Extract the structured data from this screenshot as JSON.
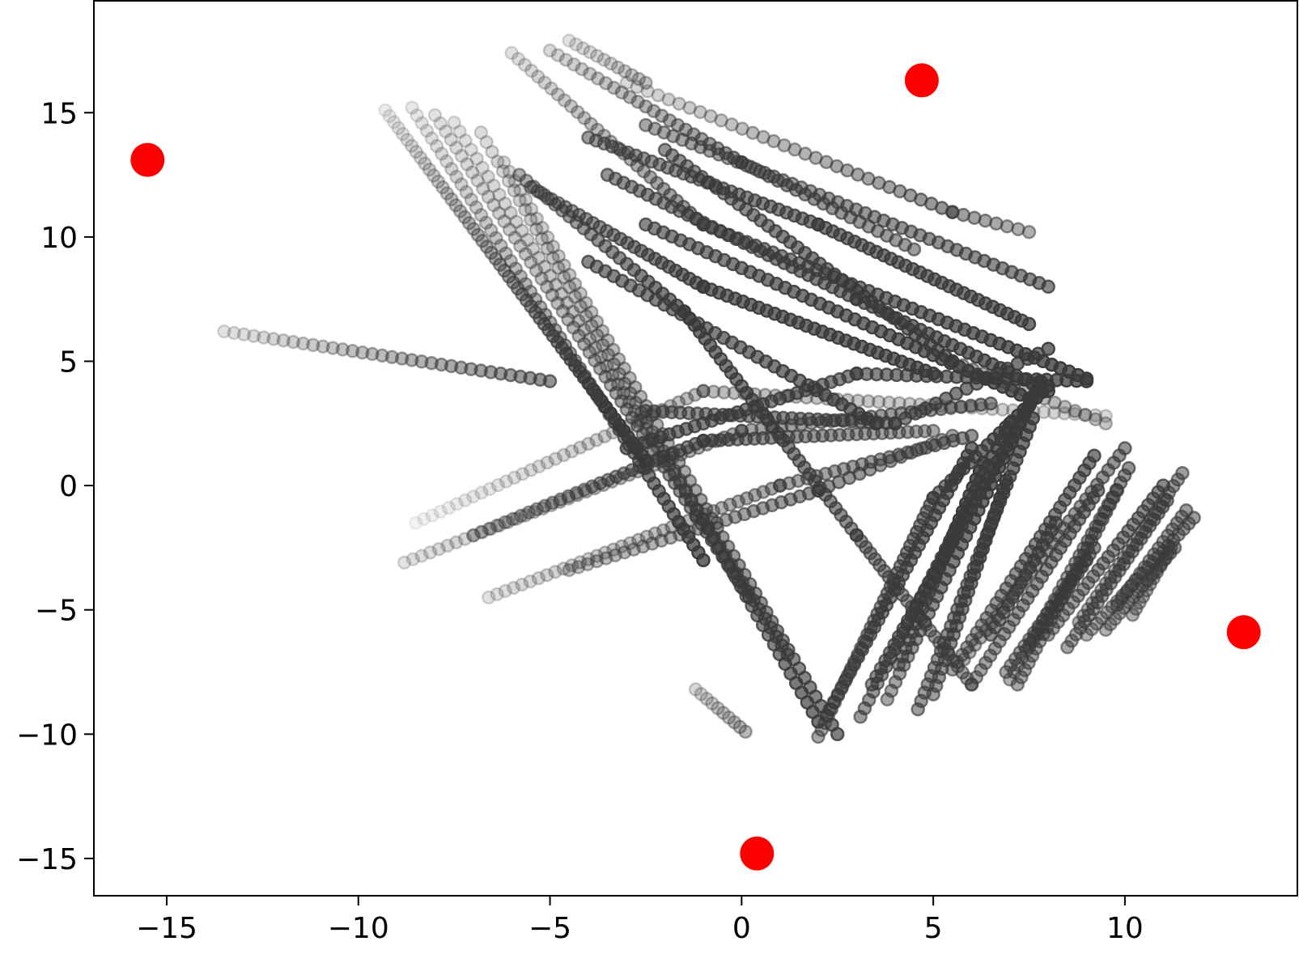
{
  "chart_data": {
    "type": "scatter",
    "title": "",
    "xlabel": "",
    "ylabel": "",
    "xlim": [
      -16.9,
      14.5
    ],
    "ylim": [
      -16.5,
      19.5
    ],
    "xticks": [
      -15,
      -10,
      -5,
      0,
      5,
      10
    ],
    "xtick_labels": [
      "−15",
      "−10",
      "−5",
      "0",
      "5",
      "10"
    ],
    "yticks": [
      -15,
      -10,
      -5,
      0,
      5,
      10,
      15
    ],
    "ytick_labels": [
      "−15",
      "−10",
      "−5",
      "0",
      "5",
      "10",
      "15"
    ],
    "grid": false,
    "legend": null,
    "colors": {
      "trajectory": "#3a3a3a",
      "marker": "#ff0000",
      "axis": "#000000"
    },
    "marker_points": [
      {
        "x": -15.5,
        "y": 13.1
      },
      {
        "x": 4.7,
        "y": 16.3
      },
      {
        "x": 13.1,
        "y": -5.9
      },
      {
        "x": 0.4,
        "y": -14.8
      }
    ],
    "trajectories": [
      {
        "from": [
          -13.5,
          6.2
        ],
        "to": [
          -5.0,
          4.2
        ],
        "n": 34,
        "a0": 0.15,
        "a1": 0.55
      },
      {
        "from": [
          -9.3,
          15.1
        ],
        "to": [
          -2.5,
          1.0
        ],
        "n": 60,
        "a0": 0.1,
        "a1": 0.85
      },
      {
        "from": [
          -8.6,
          15.2
        ],
        "to": [
          -1.0,
          -3.0
        ],
        "n": 60,
        "a0": 0.12,
        "a1": 0.75
      },
      {
        "from": [
          -8.0,
          14.9
        ],
        "to": [
          0.2,
          -4.5
        ],
        "n": 60,
        "a0": 0.15,
        "a1": 0.65
      },
      {
        "from": [
          -7.5,
          14.6
        ],
        "to": [
          1.2,
          -6.8
        ],
        "n": 60,
        "a0": 0.15,
        "a1": 0.6
      },
      {
        "from": [
          -6.8,
          14.2
        ],
        "to": [
          2.0,
          -9.5
        ],
        "n": 62,
        "a0": 0.18,
        "a1": 0.7
      },
      {
        "from": [
          -6.2,
          13.0
        ],
        "to": [
          2.5,
          -10.0
        ],
        "n": 62,
        "a0": 0.2,
        "a1": 0.65
      },
      {
        "from": [
          -5.8,
          12.5
        ],
        "to": [
          -1.5,
          7.0
        ],
        "n": 24,
        "a0": 0.4,
        "a1": 0.7
      },
      {
        "from": [
          -1.5,
          7.0
        ],
        "to": [
          3.0,
          -2.0
        ],
        "n": 34,
        "a0": 0.7,
        "a1": 0.55
      },
      {
        "from": [
          3.0,
          -2.0
        ],
        "to": [
          6.0,
          -8.0
        ],
        "n": 26,
        "a0": 0.55,
        "a1": 0.45
      },
      {
        "from": [
          -5.5,
          12.0
        ],
        "to": [
          -1.0,
          8.0
        ],
        "n": 26,
        "a0": 0.45,
        "a1": 0.7
      },
      {
        "from": [
          -1.0,
          8.0
        ],
        "to": [
          5.0,
          4.5
        ],
        "n": 30,
        "a0": 0.7,
        "a1": 0.75
      },
      {
        "from": [
          -6.0,
          17.4
        ],
        "to": [
          -1.0,
          10.5
        ],
        "n": 30,
        "a0": 0.15,
        "a1": 0.55
      },
      {
        "from": [
          -1.0,
          10.5
        ],
        "to": [
          9.0,
          4.3
        ],
        "n": 45,
        "a0": 0.55,
        "a1": 0.8
      },
      {
        "from": [
          -4.0,
          14.0
        ],
        "to": [
          2.0,
          10.5
        ],
        "n": 30,
        "a0": 0.5,
        "a1": 0.65
      },
      {
        "from": [
          2.0,
          10.5
        ],
        "to": [
          7.5,
          6.5
        ],
        "n": 30,
        "a0": 0.65,
        "a1": 0.7
      },
      {
        "from": [
          -3.5,
          12.5
        ],
        "to": [
          3.0,
          7.5
        ],
        "n": 32,
        "a0": 0.55,
        "a1": 0.65
      },
      {
        "from": [
          3.0,
          7.5
        ],
        "to": [
          8.0,
          3.8
        ],
        "n": 25,
        "a0": 0.65,
        "a1": 0.75
      },
      {
        "from": [
          -5.0,
          17.5
        ],
        "to": [
          0.0,
          13.0
        ],
        "n": 25,
        "a0": 0.2,
        "a1": 0.55
      },
      {
        "from": [
          0.0,
          13.0
        ],
        "to": [
          4.5,
          9.5
        ],
        "n": 20,
        "a0": 0.55,
        "a1": 0.5
      },
      {
        "from": [
          -3.0,
          16.2
        ],
        "to": [
          5.5,
          11.0
        ],
        "n": 32,
        "a0": 0.2,
        "a1": 0.55
      },
      {
        "from": [
          5.5,
          11.0
        ],
        "to": [
          7.5,
          10.2
        ],
        "n": 8,
        "a0": 0.5,
        "a1": 0.4
      },
      {
        "from": [
          -2.5,
          14.5
        ],
        "to": [
          8.0,
          8.0
        ],
        "n": 45,
        "a0": 0.45,
        "a1": 0.6
      },
      {
        "from": [
          -4.5,
          17.9
        ],
        "to": [
          -2.5,
          16.2
        ],
        "n": 12,
        "a0": 0.15,
        "a1": 0.3
      },
      {
        "from": [
          -2.0,
          13.5
        ],
        "to": [
          5.5,
          5.0
        ],
        "n": 40,
        "a0": 0.55,
        "a1": 0.7
      },
      {
        "from": [
          5.5,
          5.0
        ],
        "to": [
          9.5,
          2.5
        ],
        "n": 16,
        "a0": 0.45,
        "a1": 0.3
      },
      {
        "from": [
          -2.5,
          10.5
        ],
        "to": [
          7.5,
          3.5
        ],
        "n": 45,
        "a0": 0.6,
        "a1": 0.8
      },
      {
        "from": [
          -4.0,
          9.0
        ],
        "to": [
          3.5,
          2.5
        ],
        "n": 35,
        "a0": 0.6,
        "a1": 0.7
      },
      {
        "from": [
          -3.0,
          1.5
        ],
        "to": [
          3.0,
          4.5
        ],
        "n": 28,
        "a0": 0.65,
        "a1": 0.6
      },
      {
        "from": [
          3.0,
          4.5
        ],
        "to": [
          9.0,
          4.2
        ],
        "n": 24,
        "a0": 0.6,
        "a1": 0.75
      },
      {
        "from": [
          -2.5,
          3.0
        ],
        "to": [
          4.0,
          2.5
        ],
        "n": 30,
        "a0": 0.55,
        "a1": 0.6
      },
      {
        "from": [
          4.0,
          2.5
        ],
        "to": [
          8.0,
          5.5
        ],
        "n": 16,
        "a0": 0.6,
        "a1": 0.7
      },
      {
        "from": [
          -8.5,
          -1.5
        ],
        "to": [
          -1.0,
          3.8
        ],
        "n": 36,
        "a0": 0.06,
        "a1": 0.35
      },
      {
        "from": [
          -1.0,
          3.8
        ],
        "to": [
          9.5,
          2.8
        ],
        "n": 40,
        "a0": 0.35,
        "a1": 0.2
      },
      {
        "from": [
          -8.8,
          -3.1
        ],
        "to": [
          0.0,
          2.2
        ],
        "n": 40,
        "a0": 0.15,
        "a1": 0.45
      },
      {
        "from": [
          0.0,
          2.2
        ],
        "to": [
          6.5,
          3.3
        ],
        "n": 26,
        "a0": 0.45,
        "a1": 0.55
      },
      {
        "from": [
          -7.0,
          -2.0
        ],
        "to": [
          -1.0,
          1.8
        ],
        "n": 30,
        "a0": 0.3,
        "a1": 0.6
      },
      {
        "from": [
          -1.0,
          1.8
        ],
        "to": [
          5.0,
          2.2
        ],
        "n": 28,
        "a0": 0.6,
        "a1": 0.45
      },
      {
        "from": [
          -6.6,
          -4.5
        ],
        "to": [
          1.0,
          0.0
        ],
        "n": 36,
        "a0": 0.15,
        "a1": 0.45
      },
      {
        "from": [
          1.0,
          0.0
        ],
        "to": [
          6.0,
          2.0
        ],
        "n": 22,
        "a0": 0.45,
        "a1": 0.55
      },
      {
        "from": [
          -4.5,
          -3.4
        ],
        "to": [
          2.0,
          -0.2
        ],
        "n": 28,
        "a0": 0.3,
        "a1": 0.55
      },
      {
        "from": [
          2.0,
          -0.2
        ],
        "to": [
          5.5,
          2.0
        ],
        "n": 14,
        "a0": 0.55,
        "a1": 0.45
      },
      {
        "from": [
          -1.2,
          -8.2
        ],
        "to": [
          0.1,
          -9.9
        ],
        "n": 10,
        "a0": 0.2,
        "a1": 0.35
      },
      {
        "from": [
          2.0,
          -10.1
        ],
        "to": [
          5.0,
          -0.5
        ],
        "n": 36,
        "a0": 0.45,
        "a1": 0.6
      },
      {
        "from": [
          5.0,
          -0.5
        ],
        "to": [
          8.0,
          4.0
        ],
        "n": 20,
        "a0": 0.6,
        "a1": 0.8
      },
      {
        "from": [
          2.3,
          -9.0
        ],
        "to": [
          6.0,
          1.5
        ],
        "n": 36,
        "a0": 0.55,
        "a1": 0.7
      },
      {
        "from": [
          3.1,
          -9.3
        ],
        "to": [
          7.0,
          2.5
        ],
        "n": 36,
        "a0": 0.5,
        "a1": 0.75
      },
      {
        "from": [
          3.4,
          -8.0
        ],
        "to": [
          7.5,
          3.2
        ],
        "n": 36,
        "a0": 0.55,
        "a1": 0.85
      },
      {
        "from": [
          3.8,
          -8.6
        ],
        "to": [
          7.8,
          4.2
        ],
        "n": 38,
        "a0": 0.45,
        "a1": 0.9
      },
      {
        "from": [
          4.1,
          -7.2
        ],
        "to": [
          6.3,
          0.9
        ],
        "n": 26,
        "a0": 0.5,
        "a1": 0.85
      },
      {
        "from": [
          4.6,
          -9.0
        ],
        "to": [
          7.6,
          2.7
        ],
        "n": 36,
        "a0": 0.5,
        "a1": 0.7
      },
      {
        "from": [
          5.0,
          -8.4
        ],
        "to": [
          6.9,
          0.2
        ],
        "n": 26,
        "a0": 0.5,
        "a1": 0.75
      },
      {
        "from": [
          5.5,
          -7.4
        ],
        "to": [
          9.2,
          1.2
        ],
        "n": 30,
        "a0": 0.45,
        "a1": 0.65
      },
      {
        "from": [
          5.8,
          -7.0
        ],
        "to": [
          10.0,
          1.5
        ],
        "n": 30,
        "a0": 0.4,
        "a1": 0.55
      },
      {
        "from": [
          6.0,
          -8.0
        ],
        "to": [
          9.3,
          -0.2
        ],
        "n": 28,
        "a0": 0.45,
        "a1": 0.6
      },
      {
        "from": [
          6.5,
          -6.0
        ],
        "to": [
          8.2,
          -1.5
        ],
        "n": 16,
        "a0": 0.55,
        "a1": 0.65
      },
      {
        "from": [
          6.9,
          -7.5
        ],
        "to": [
          9.2,
          -2.5
        ],
        "n": 20,
        "a0": 0.45,
        "a1": 0.55
      },
      {
        "from": [
          7.0,
          -7.8
        ],
        "to": [
          10.1,
          0.7
        ],
        "n": 30,
        "a0": 0.4,
        "a1": 0.55
      },
      {
        "from": [
          7.2,
          -8.0
        ],
        "to": [
          9.8,
          -0.2
        ],
        "n": 28,
        "a0": 0.45,
        "a1": 0.55
      },
      {
        "from": [
          7.5,
          -6.5
        ],
        "to": [
          9.0,
          -3.0
        ],
        "n": 14,
        "a0": 0.4,
        "a1": 0.55
      },
      {
        "from": [
          8.0,
          -6.0
        ],
        "to": [
          11.0,
          0.0
        ],
        "n": 24,
        "a0": 0.45,
        "a1": 0.6
      },
      {
        "from": [
          8.5,
          -6.5
        ],
        "to": [
          11.1,
          -0.6
        ],
        "n": 24,
        "a0": 0.45,
        "a1": 0.55
      },
      {
        "from": [
          8.8,
          -5.5
        ],
        "to": [
          11.5,
          0.5
        ],
        "n": 24,
        "a0": 0.4,
        "a1": 0.5
      },
      {
        "from": [
          9.0,
          -6.0
        ],
        "to": [
          11.8,
          -1.3
        ],
        "n": 22,
        "a0": 0.4,
        "a1": 0.5
      },
      {
        "from": [
          9.5,
          -5.8
        ],
        "to": [
          11.3,
          -2.5
        ],
        "n": 16,
        "a0": 0.4,
        "a1": 0.5
      },
      {
        "from": [
          9.8,
          -4.8
        ],
        "to": [
          11.6,
          -1.0
        ],
        "n": 16,
        "a0": 0.45,
        "a1": 0.5
      },
      {
        "from": [
          10.2,
          -5.2
        ],
        "to": [
          11.2,
          -2.5
        ],
        "n": 12,
        "a0": 0.4,
        "a1": 0.45
      }
    ]
  }
}
